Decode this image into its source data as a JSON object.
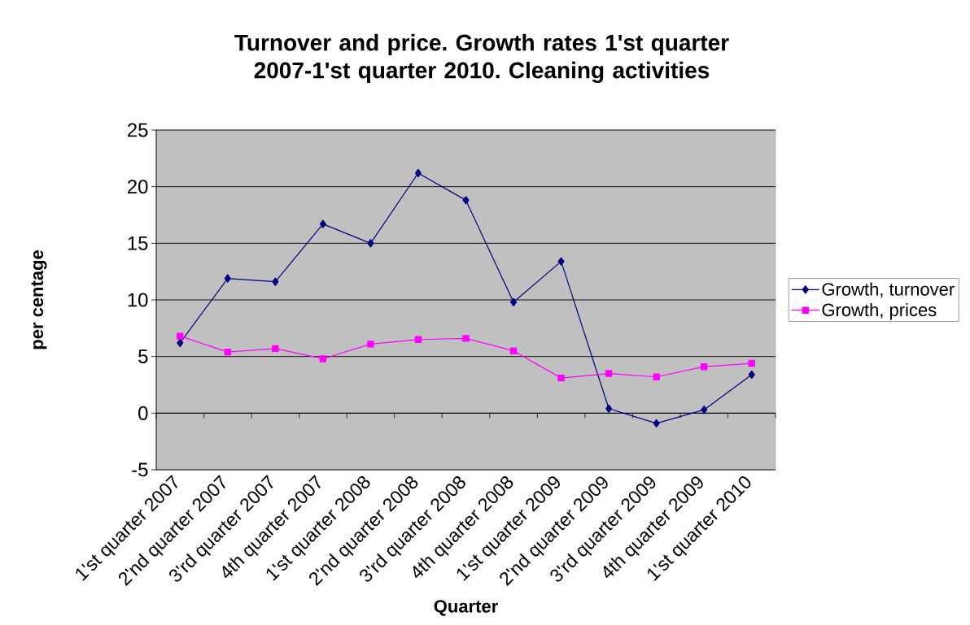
{
  "chart_data": {
    "type": "line",
    "title": "Turnover and price. Growth rates 1'st quarter 2007-1'st quarter 2010. Cleaning activities",
    "xlabel": "Quarter",
    "ylabel": "per centage",
    "categories": [
      "1'st quarter 2007",
      "2'nd quarter 2007",
      "3'rd quarter 2007",
      "4th quarter 2007",
      "1'st quarter 2008",
      "2'nd quarter 2008",
      "3'rd quarter 2008",
      "4th quarter 2008",
      "1'st quarter 2009",
      "2'nd quarter 2009",
      "3'rd quarter 2009",
      "4th quarter 2009",
      "1'st quarter 2010"
    ],
    "series": [
      {
        "name": "Growth, turnover",
        "color": "#000080",
        "marker": "diamond",
        "values": [
          6.2,
          11.9,
          11.6,
          16.7,
          15.0,
          21.2,
          18.8,
          9.8,
          13.4,
          0.4,
          -0.9,
          0.3,
          3.4
        ]
      },
      {
        "name": "Growth, prices",
        "color": "#ff00ff",
        "marker": "square",
        "values": [
          6.8,
          5.4,
          5.7,
          4.8,
          6.1,
          6.5,
          6.6,
          5.5,
          3.1,
          3.5,
          3.2,
          4.1,
          4.4
        ]
      }
    ],
    "ylim": [
      -5,
      25
    ],
    "yticks": [
      -5,
      0,
      5,
      10,
      15,
      20,
      25
    ],
    "grid": "y",
    "legend": "right"
  }
}
